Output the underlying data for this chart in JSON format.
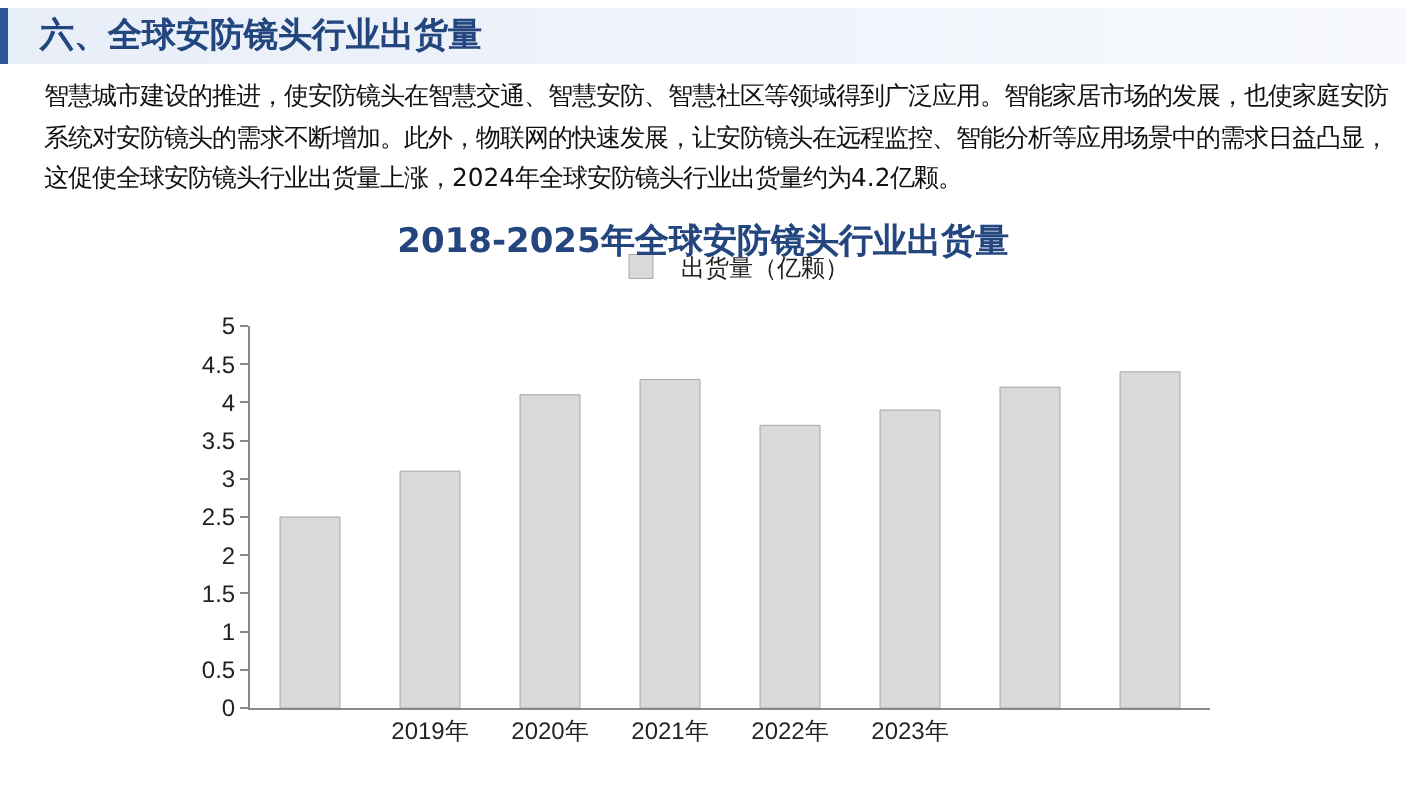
{
  "chart_data": {
    "type": "bar",
    "title": "2018-2025年全球安防镜头行业出货量",
    "annotations": [
      "六、全球安防镜头行业出货量",
      "智慧城市建设的推进，使安防镜头在智慧交通、智慧安防、智慧社区等领域得到广泛应用。智能家居市场的发展，也使家庭安防系统对安防镜头的需求不断增加。此外，物联网的快速发展，让安防镜头在远程监控、智能分析等应用场景中的需求日益凸显，这促使全球安防镜头行业出货量上涨，2024年全球安防镜头行业出货量约为4.2亿颗。"
    ],
    "categories": [
      null,
      "2019年",
      "2020年",
      "2021年",
      "2022年",
      "2023年",
      null,
      null
    ],
    "series": [
      {
        "name": "出货量（亿颗）",
        "color": "#d9d9d9",
        "values": [
          2.5,
          3.1,
          4.1,
          4.3,
          3.7,
          3.9,
          4.2,
          4.4
        ]
      }
    ],
    "ylim": [
      0,
      5
    ],
    "yticks": [
      0,
      0.5,
      1,
      1.5,
      2,
      2.5,
      3,
      3.5,
      4,
      4.5,
      5
    ],
    "grid": false,
    "legend": "top"
  }
}
